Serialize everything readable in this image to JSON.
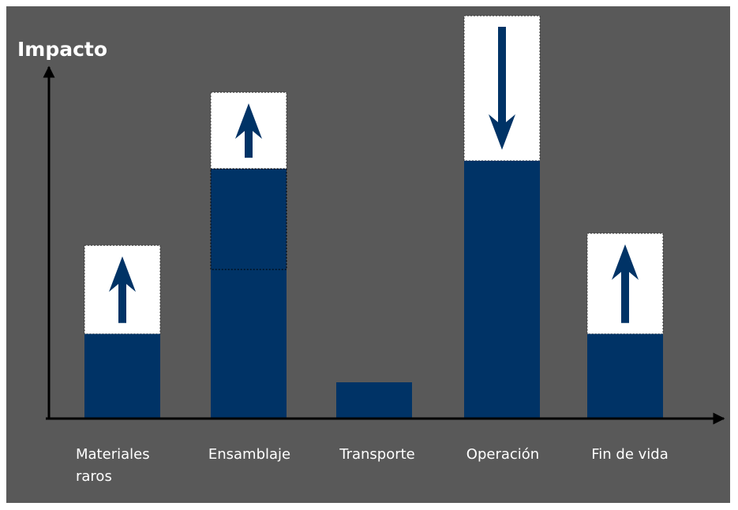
{
  "chart_data": {
    "type": "bar",
    "ylabel": "Impacto",
    "xlabel": "",
    "title": "",
    "categories": [
      [
        "Materiales",
        "raros"
      ],
      [
        "Ensamblaje"
      ],
      [
        "Transporte"
      ],
      [
        "Operación"
      ],
      [
        "Fin de vida"
      ]
    ],
    "ylim": [
      0,
      100
    ],
    "series": [
      {
        "values": [
          21,
          37,
          9,
          64,
          21
        ]
      }
    ],
    "changes": [
      {
        "direction": "up",
        "from": 21,
        "to": 43
      },
      {
        "direction": "up",
        "from": 62,
        "to": 81
      },
      null,
      {
        "direction": "down",
        "from": 100,
        "to": 64
      },
      {
        "direction": "up",
        "from": 21,
        "to": 46
      }
    ],
    "extra_segment": {
      "category": 1,
      "from": 37,
      "to": 62
    },
    "grid": false,
    "legend": "none"
  },
  "colors": {
    "background": "#595959",
    "bar": "#003366",
    "highlight": "#ffffff",
    "axis": "#000000",
    "text": "#ffffff"
  }
}
